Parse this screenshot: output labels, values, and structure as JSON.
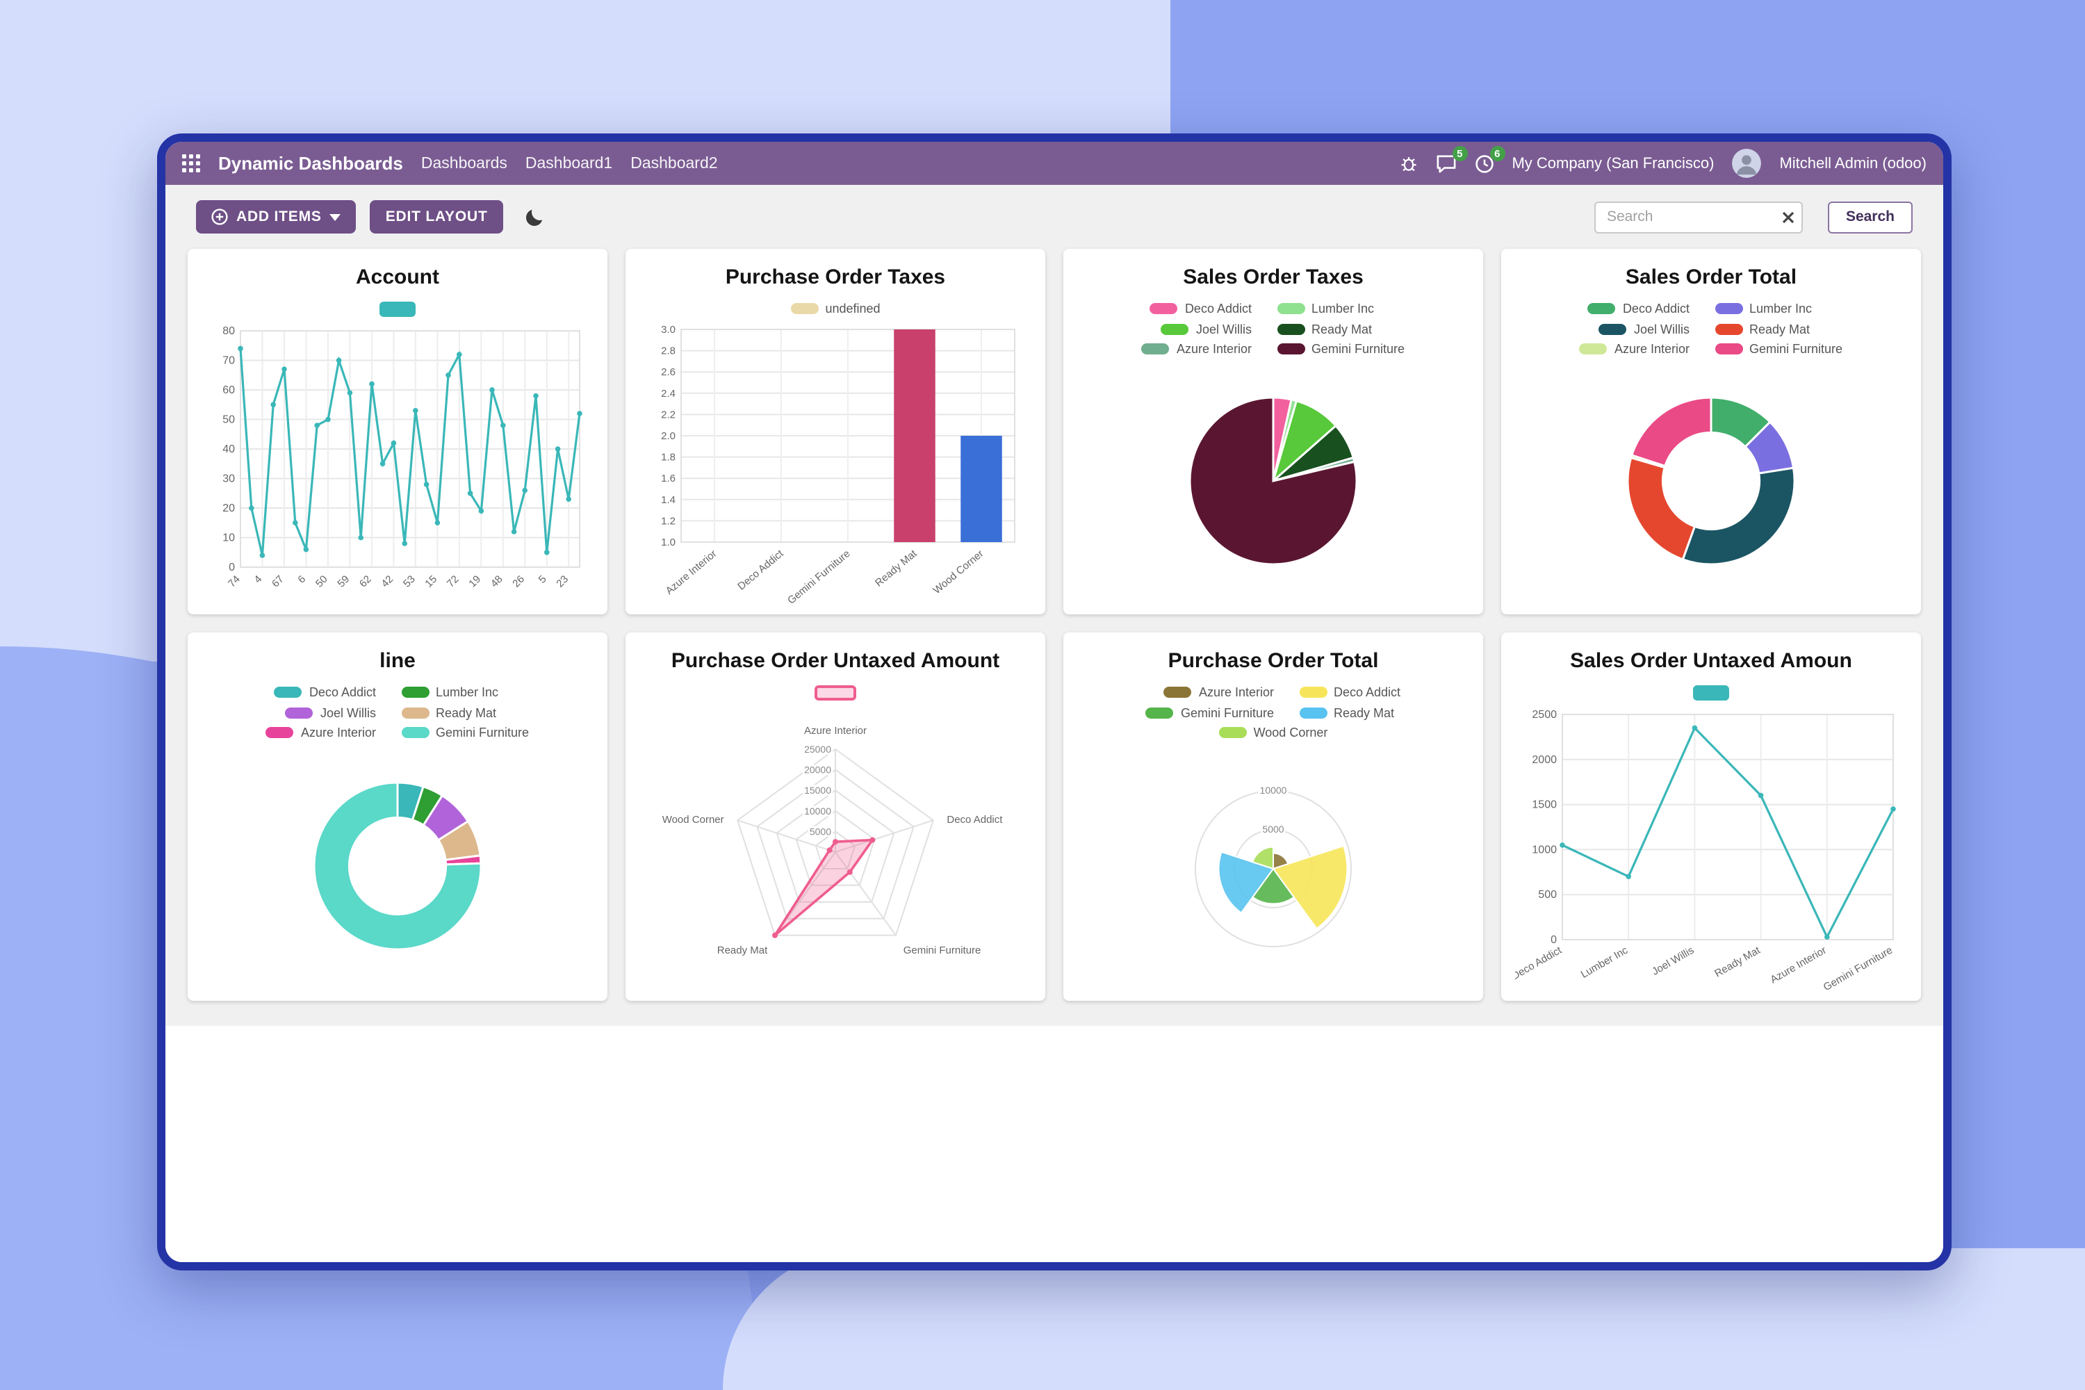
{
  "header": {
    "app_title": "Dynamic Dashboards",
    "menu": [
      "Dashboards",
      "Dashboard1",
      "Dashboard2"
    ],
    "badges": {
      "messages": "5",
      "activities": "6"
    },
    "company": "My Company (San Francisco)",
    "user": "Mitchell Admin (odoo)"
  },
  "toolbar": {
    "add_items_label": "ADD ITEMS",
    "edit_layout_label": "EDIT LAYOUT",
    "search_placeholder": "Search",
    "search_button_label": "Search"
  },
  "icons": {
    "left": [
      "apps-grid-icon"
    ],
    "right": [
      "bug-icon",
      "chat-bubble-icon",
      "clock-icon"
    ],
    "toolbar": [
      "plus-circle-icon",
      "caret-down-icon",
      "moon-icon",
      "x-clear-icon"
    ]
  },
  "colors": {
    "navbar": "#7a5c92",
    "primary_button": "#6e4f86",
    "window_border": "#2433a5",
    "badge_green": "#43a047",
    "background_dark": "#8ea4f2",
    "background_light": "#d4ddfc",
    "panel_gray": "#f0f0f1"
  },
  "chart_data": [
    {
      "type": "line",
      "title": "Account",
      "legend": [
        {
          "label": "",
          "color": "#3ab7b8"
        }
      ],
      "categories": [
        "74",
        "",
        "4",
        "",
        "67",
        "",
        "6",
        "",
        "50",
        "",
        "59",
        "",
        "62",
        "",
        "42",
        "",
        "53",
        "",
        "15",
        "",
        "72",
        "",
        "19",
        "",
        "48",
        "",
        "26",
        "",
        "5",
        "",
        "23",
        ""
      ],
      "values": [
        74,
        20,
        4,
        55,
        67,
        15,
        6,
        48,
        50,
        70,
        59,
        10,
        62,
        35,
        42,
        8,
        53,
        28,
        15,
        65,
        72,
        25,
        19,
        60,
        48,
        12,
        26,
        58,
        5,
        40,
        23,
        52
      ],
      "color": "#3ab7b8",
      "ylim": [
        0,
        80
      ],
      "ystep": 10,
      "ydecimals": 0,
      "rotate": -45,
      "ml": 28,
      "mb": 26,
      "grid": true,
      "legend_position": "top"
    },
    {
      "type": "bar",
      "title": "Purchase Order Taxes",
      "legend": [
        {
          "label": "undefined",
          "color": "#ead9a8"
        }
      ],
      "categories": [
        "Azure Interior",
        "Deco Addict",
        "Gemini Furniture",
        "Ready Mat",
        "Wood Corner"
      ],
      "values": [
        null,
        null,
        null,
        3,
        2
      ],
      "bar_colors": [
        null,
        null,
        null,
        "#c9406c",
        "#3a6fd8"
      ],
      "ylim": [
        1.0,
        3.0
      ],
      "ystep": 0.2,
      "ydecimals": 1,
      "grid": true,
      "legend_position": "top"
    },
    {
      "type": "pie",
      "title": "Sales Order Taxes",
      "legend": [
        {
          "label": "Deco Addict",
          "color": "#f2609e"
        },
        {
          "label": "Lumber Inc",
          "color": "#8fe08f"
        },
        {
          "label": "Joel Willis",
          "color": "#57c93a"
        },
        {
          "label": "Ready Mat",
          "color": "#19501f"
        },
        {
          "label": "Azure Interior",
          "color": "#6fae8e"
        },
        {
          "label": "Gemini Furniture",
          "color": "#5a1630"
        }
      ],
      "values": [
        3.5,
        1,
        9,
        7,
        0.8,
        78.7
      ],
      "inner": 0,
      "legend_position": "top"
    },
    {
      "type": "pie",
      "title": "Sales Order Total",
      "legend": [
        {
          "label": "Deco Addict",
          "color": "#41ae6b"
        },
        {
          "label": "Lumber Inc",
          "color": "#7a6fe0"
        },
        {
          "label": "Joel Willis",
          "color": "#1b5563"
        },
        {
          "label": "Ready Mat",
          "color": "#e5472e"
        },
        {
          "label": "Azure Interior",
          "color": "#cfe897"
        },
        {
          "label": "Gemini Furniture",
          "color": "#ea4a86"
        }
      ],
      "values": [
        12.5,
        10,
        33,
        24,
        0.5,
        20
      ],
      "inner": 0.58,
      "legend_position": "top"
    },
    {
      "type": "pie",
      "title": "line",
      "legend": [
        {
          "label": "Deco Addict",
          "color": "#3ab7b8"
        },
        {
          "label": "Lumber Inc",
          "color": "#2f9e33"
        },
        {
          "label": "Joel Willis",
          "color": "#b163d9"
        },
        {
          "label": "Ready Mat",
          "color": "#ddb88d"
        },
        {
          "label": "Azure Interior",
          "color": "#e8439a"
        },
        {
          "label": "Gemini Furniture",
          "color": "#5ad8c8"
        }
      ],
      "values": [
        5,
        4,
        7,
        7,
        1.5,
        75.5
      ],
      "inner": 0.58,
      "legend_position": "top"
    },
    {
      "type": "radar",
      "title": "Purchase Order Untaxed Amount",
      "legend": [
        {
          "label": "",
          "color": "#ef5d8f",
          "outline": true,
          "fill": "#fbd9e6"
        }
      ],
      "axes": [
        "Azure Interior",
        "Deco Addict",
        "Gemini Furniture",
        "Ready Mat",
        "Wood Corner"
      ],
      "values": [
        2500,
        9500,
        6000,
        25000,
        1500
      ],
      "rings": [
        5000,
        10000,
        15000,
        20000,
        25000
      ],
      "rmax": 25000,
      "color": "#ef5d8f",
      "legend_position": "top"
    },
    {
      "type": "polarArea",
      "title": "Purchase Order Total",
      "legend": [
        {
          "label": "Azure Interior",
          "color": "#8b7536"
        },
        {
          "label": "Deco Addict",
          "color": "#f6e55a"
        },
        {
          "label": "Gemini Furniture",
          "color": "#55b54a"
        },
        {
          "label": "Ready Mat",
          "color": "#58c3f0"
        },
        {
          "label": "Wood Corner",
          "color": "#a9dd58"
        }
      ],
      "values": [
        2000,
        9500,
        4500,
        7000,
        2800
      ],
      "rings": [
        5000,
        10000
      ],
      "rmax": 10000,
      "legend_position": "top"
    },
    {
      "type": "line",
      "title": "Sales Order Untaxed Amoun",
      "legend": [
        {
          "label": "",
          "color": "#3ab7b8"
        }
      ],
      "categories": [
        "Deco Addict",
        "Lumber Inc",
        "Joel Willis",
        "Ready Mat",
        "Azure Interior",
        "Gemini Furniture"
      ],
      "values": [
        1050,
        700,
        2350,
        1600,
        30,
        1450
      ],
      "color": "#3ab7b8",
      "ylim": [
        0,
        2500
      ],
      "ystep": 500,
      "ydecimals": 0,
      "rotate": -30,
      "ml": 34,
      "mb": 36,
      "grid": true,
      "legend_position": "top"
    }
  ]
}
